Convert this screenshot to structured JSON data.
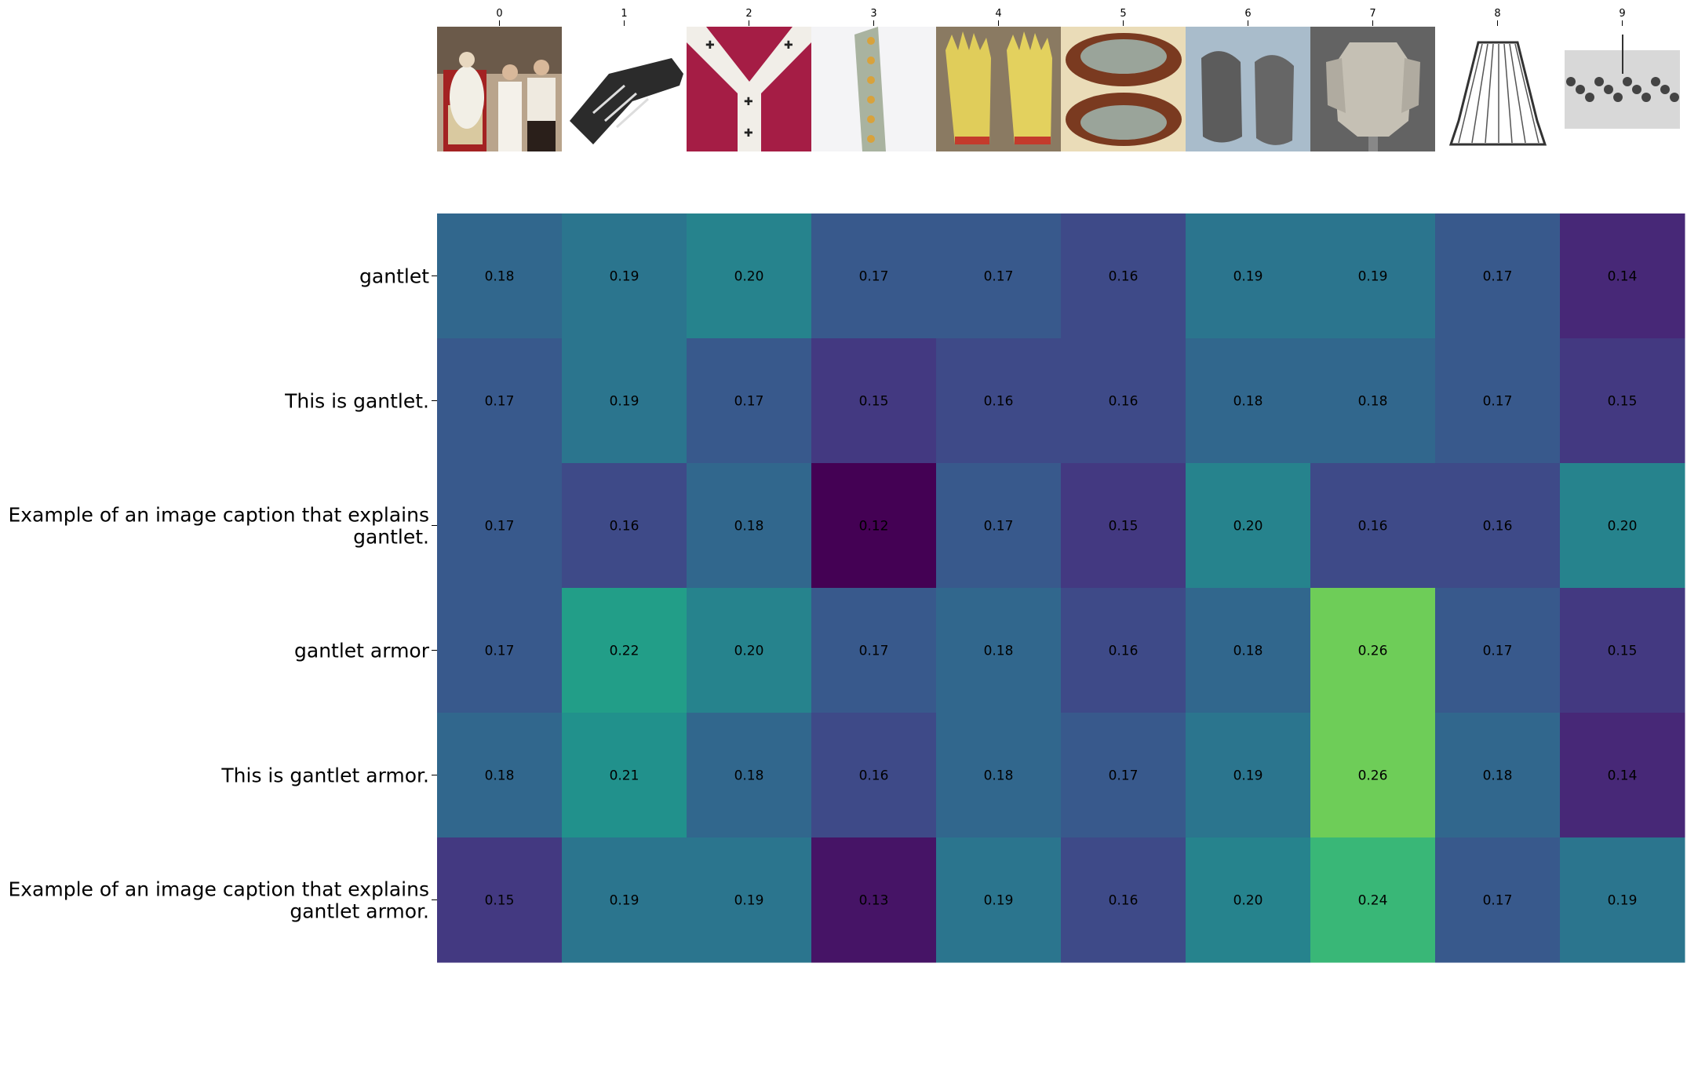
{
  "chart_data": {
    "type": "heatmap",
    "x_categories": [
      "0",
      "1",
      "2",
      "3",
      "4",
      "5",
      "6",
      "7",
      "8",
      "9"
    ],
    "image_thumbnails": [
      "ceremony-photo",
      "gauntlet-drawing",
      "red-vestment-pallium",
      "patterned-stole",
      "yellow-gloves",
      "jeweled-slippers",
      "gray-sandals",
      "plate-armor",
      "skirt-drawing",
      "crowd-engraving"
    ],
    "y_categories": [
      "gantlet",
      "This is gantlet.",
      "Example of an image caption that explains gantlet.",
      "gantlet armor",
      "This is gantlet armor.",
      "Example of an image caption that explains gantlet armor."
    ],
    "values": [
      [
        0.18,
        0.19,
        0.2,
        0.17,
        0.17,
        0.16,
        0.19,
        0.19,
        0.17,
        0.14
      ],
      [
        0.17,
        0.19,
        0.17,
        0.15,
        0.16,
        0.16,
        0.18,
        0.18,
        0.17,
        0.15
      ],
      [
        0.17,
        0.16,
        0.18,
        0.12,
        0.17,
        0.15,
        0.2,
        0.16,
        0.16,
        0.2
      ],
      [
        0.17,
        0.22,
        0.2,
        0.17,
        0.18,
        0.16,
        0.18,
        0.26,
        0.17,
        0.15
      ],
      [
        0.18,
        0.21,
        0.18,
        0.16,
        0.18,
        0.17,
        0.19,
        0.26,
        0.18,
        0.14
      ],
      [
        0.15,
        0.19,
        0.19,
        0.13,
        0.19,
        0.16,
        0.2,
        0.24,
        0.17,
        0.19
      ]
    ],
    "value_format": "2 decimals",
    "colormap": "viridis",
    "color_range": [
      0.12,
      0.3
    ],
    "cell_label_color": "#000000",
    "title": "",
    "xlabel": "",
    "ylabel": ""
  }
}
